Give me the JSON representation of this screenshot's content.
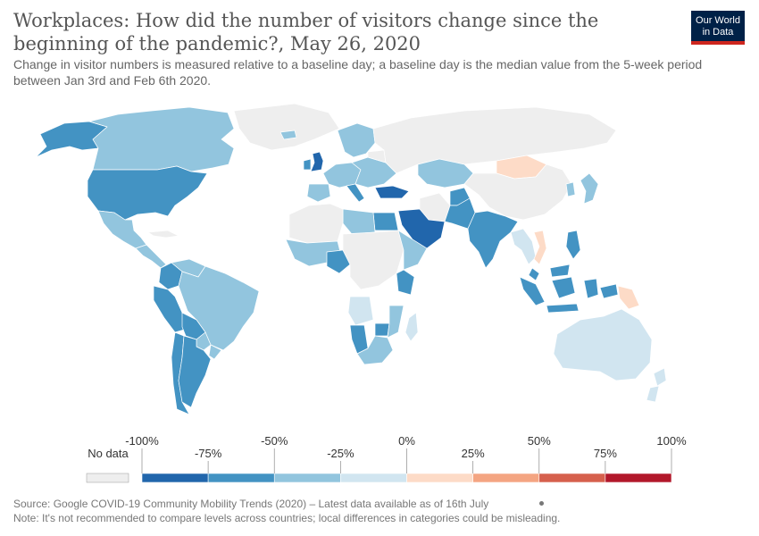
{
  "title": "Workplaces: How did the number of visitors change since the beginning of the pandemic?, May 26, 2020",
  "subtitle": "Change in visitor numbers is measured relative to a baseline day; a baseline day is the median value from the 5-week period between Jan 3rd and Feb 6th 2020.",
  "logo": {
    "line1": "Our World",
    "line2": "in Data"
  },
  "legend": {
    "no_data_label": "No data",
    "no_data_color": "#eeeeee",
    "bins": [
      {
        "from": -100,
        "to": -75,
        "color": "#2166ac"
      },
      {
        "from": -75,
        "to": -50,
        "color": "#4393c3"
      },
      {
        "from": -50,
        "to": -25,
        "color": "#92c5de"
      },
      {
        "from": -25,
        "to": 0,
        "color": "#d1e5f0"
      },
      {
        "from": 0,
        "to": 25,
        "color": "#fddbc7"
      },
      {
        "from": 25,
        "to": 50,
        "color": "#f4a582"
      },
      {
        "from": 50,
        "to": 75,
        "color": "#d6604d"
      },
      {
        "from": 75,
        "to": 100,
        "color": "#b2182b"
      }
    ],
    "tick_labels_top": [
      "-100%",
      "-50%",
      "0%",
      "50%",
      "100%"
    ],
    "tick_labels_bottom": [
      "-75%",
      "-25%",
      "25%",
      "75%"
    ]
  },
  "footer": {
    "source": "Source: Google COVID-19 Community Mobility Trends (2020) – Latest data available as of 16th July",
    "note": "Note: It's not recommended to compare levels across countries; local differences in categories could be misleading."
  },
  "regions": [
    {
      "name": "Greenland",
      "color": "#eeeeee"
    },
    {
      "name": "Alaska",
      "color": "#4393c3"
    },
    {
      "name": "Canada",
      "color": "#92c5de"
    },
    {
      "name": "United States",
      "color": "#4393c3"
    },
    {
      "name": "Mexico",
      "color": "#92c5de"
    },
    {
      "name": "Central America",
      "color": "#92c5de"
    },
    {
      "name": "Cuba",
      "color": "#eeeeee"
    },
    {
      "name": "Colombia",
      "color": "#4393c3"
    },
    {
      "name": "Venezuela",
      "color": "#92c5de"
    },
    {
      "name": "Peru",
      "color": "#4393c3"
    },
    {
      "name": "Brazil",
      "color": "#92c5de"
    },
    {
      "name": "Bolivia",
      "color": "#4393c3"
    },
    {
      "name": "Paraguay",
      "color": "#92c5de"
    },
    {
      "name": "Chile",
      "color": "#4393c3"
    },
    {
      "name": "Argentina",
      "color": "#4393c3"
    },
    {
      "name": "Uruguay",
      "color": "#92c5de"
    },
    {
      "name": "United Kingdom",
      "color": "#2166ac"
    },
    {
      "name": "Ireland",
      "color": "#4393c3"
    },
    {
      "name": "Iceland",
      "color": "#92c5de"
    },
    {
      "name": "Scandinavia",
      "color": "#92c5de"
    },
    {
      "name": "Western Europe",
      "color": "#92c5de"
    },
    {
      "name": "Spain",
      "color": "#92c5de"
    },
    {
      "name": "Italy",
      "color": "#4393c3"
    },
    {
      "name": "Eastern Europe",
      "color": "#92c5de"
    },
    {
      "name": "Belarus",
      "color": "#eeeeee"
    },
    {
      "name": "Russia",
      "color": "#eeeeee"
    },
    {
      "name": "Turkey",
      "color": "#2166ac"
    },
    {
      "name": "Kazakhstan",
      "color": "#92c5de"
    },
    {
      "name": "Mongolia",
      "color": "#fddbc7"
    },
    {
      "name": "China",
      "color": "#eeeeee"
    },
    {
      "name": "Japan",
      "color": "#92c5de"
    },
    {
      "name": "Korea",
      "color": "#92c5de"
    },
    {
      "name": "Iran",
      "color": "#eeeeee"
    },
    {
      "name": "Afghanistan",
      "color": "#4393c3"
    },
    {
      "name": "Pakistan",
      "color": "#4393c3"
    },
    {
      "name": "India",
      "color": "#4393c3"
    },
    {
      "name": "Saudi Arabia",
      "color": "#2166ac"
    },
    {
      "name": "Egypt",
      "color": "#4393c3"
    },
    {
      "name": "Libya",
      "color": "#92c5de"
    },
    {
      "name": "North Africa West",
      "color": "#eeeeee"
    },
    {
      "name": "West Africa",
      "color": "#92c5de"
    },
    {
      "name": "Nigeria",
      "color": "#4393c3"
    },
    {
      "name": "Central Africa",
      "color": "#eeeeee"
    },
    {
      "name": "East Africa",
      "color": "#92c5de"
    },
    {
      "name": "Kenya",
      "color": "#4393c3"
    },
    {
      "name": "Angola",
      "color": "#d1e5f0"
    },
    {
      "name": "Namibia",
      "color": "#4393c3"
    },
    {
      "name": "Zimbabwe",
      "color": "#4393c3"
    },
    {
      "name": "Mozambique",
      "color": "#92c5de"
    },
    {
      "name": "South Africa",
      "color": "#92c5de"
    },
    {
      "name": "Madagascar",
      "color": "#d1e5f0"
    },
    {
      "name": "Southeast Asia",
      "color": "#d1e5f0"
    },
    {
      "name": "Vietnam",
      "color": "#fddbc7"
    },
    {
      "name": "Philippines",
      "color": "#4393c3"
    },
    {
      "name": "Malaysia",
      "color": "#4393c3"
    },
    {
      "name": "Indonesia",
      "color": "#4393c3"
    },
    {
      "name": "Papua New Guinea",
      "color": "#fddbc7"
    },
    {
      "name": "Australia",
      "color": "#d1e5f0"
    },
    {
      "name": "New Zealand",
      "color": "#d1e5f0"
    }
  ]
}
